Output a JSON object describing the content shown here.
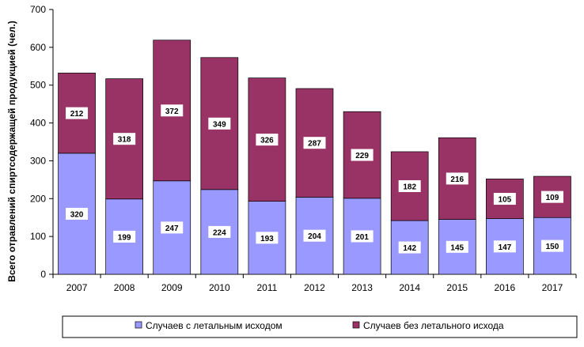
{
  "chart_data": {
    "type": "bar",
    "stacked": true,
    "categories": [
      "2007",
      "2008",
      "2009",
      "2010",
      "2011",
      "2012",
      "2013",
      "2014",
      "2015",
      "2016",
      "2017"
    ],
    "series": [
      {
        "name": "Случаев с летальным исходом",
        "color": "#9999ff",
        "values": [
          320,
          199,
          247,
          224,
          193,
          204,
          201,
          142,
          145,
          147,
          150
        ]
      },
      {
        "name": "Случаев без летального исхода",
        "color": "#993366",
        "values": [
          212,
          318,
          372,
          349,
          326,
          287,
          229,
          182,
          216,
          105,
          109
        ]
      }
    ],
    "xlabel": "",
    "ylabel": "Всего отравлений спиртсодержащей  продукцией (чел.)",
    "ylim": [
      0,
      700
    ],
    "yticks": [
      0,
      100,
      200,
      300,
      400,
      500,
      600,
      700
    ],
    "grid": false,
    "legend": "bottom"
  }
}
